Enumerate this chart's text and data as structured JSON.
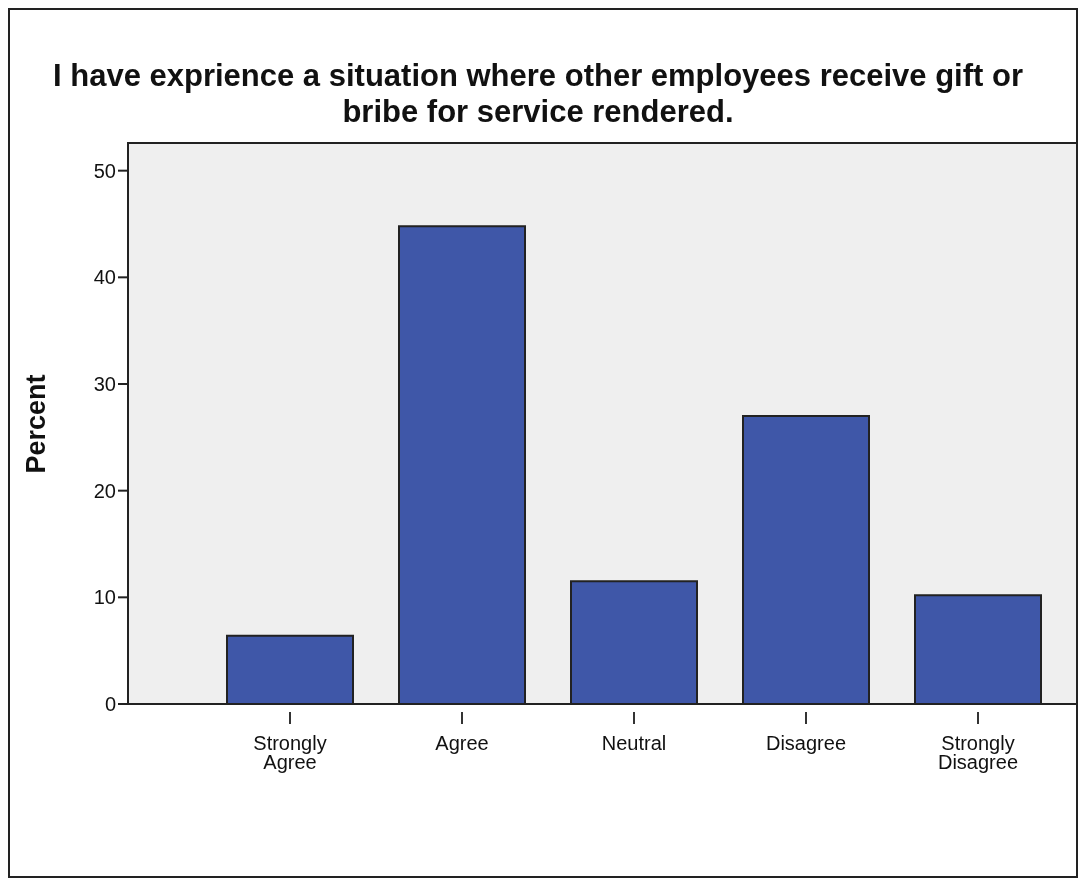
{
  "chart_data": {
    "type": "bar",
    "title": "I have exprience a situation where other employees receive gift or bribe for service rendered.",
    "ylabel": "Percent",
    "categories": [
      "Strongly Agree",
      "Agree",
      "Neutral",
      "Disagree",
      "Strongly Disagree"
    ],
    "values": [
      6.4,
      44.8,
      11.5,
      27.0,
      10.2
    ],
    "color": "#3f57a8",
    "ylim": [
      0,
      52.5
    ],
    "yticks": [
      0,
      10,
      20,
      30,
      40,
      50
    ]
  }
}
